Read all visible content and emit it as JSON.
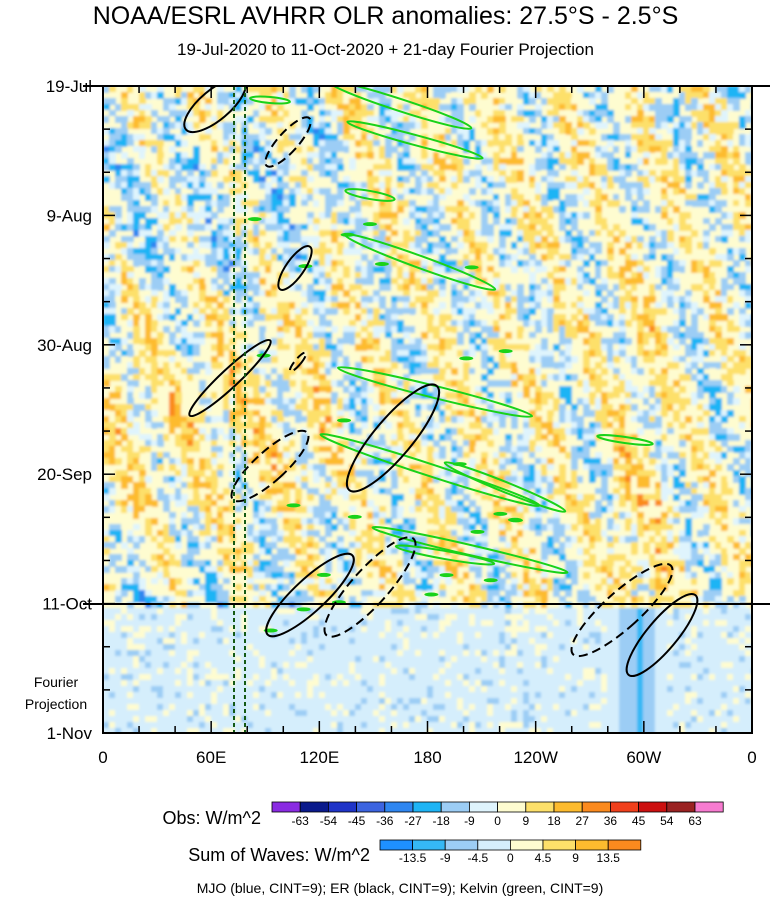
{
  "title": "NOAA/ESRL AVHRR OLR anomalies: 27.5°S - 2.5°S",
  "subtitle": "19-Jul-2020 to 11-Oct-2020 + 21-day Fourier Projection",
  "chart_data": {
    "type": "heatmap",
    "y_axis": {
      "tick_labels": [
        "19-Jul",
        "9-Aug",
        "30-Aug",
        "20-Sep",
        "11-Oct",
        "1-Nov"
      ],
      "projection_label_lines": [
        "Fourier",
        "Projection"
      ]
    },
    "x_axis": {
      "tick_labels": [
        "0",
        "60E",
        "120E",
        "180",
        "120W",
        "60W",
        "0"
      ],
      "range_degrees": [
        0,
        360
      ]
    },
    "observation_end": "11-Oct",
    "obs_colorbar": {
      "label": "Obs: W/m^2",
      "levels": [
        -63,
        -54,
        -45,
        -36,
        -27,
        -18,
        -9,
        0,
        9,
        18,
        27,
        36,
        45,
        54,
        63
      ],
      "colors": [
        "#8a2be2",
        "#0a1a8c",
        "#1f34c8",
        "#3c64e0",
        "#2f86f0",
        "#1eb4f5",
        "#9ccdf5",
        "#dff4fd",
        "#fefcd0",
        "#fde06a",
        "#fdbb2e",
        "#fb8a1e",
        "#f0401c",
        "#cc1010",
        "#9a2222",
        "#f77bd0"
      ]
    },
    "waves_colorbar": {
      "label": "Sum of Waves: W/m^2",
      "levels": [
        -13.5,
        -9,
        -4.5,
        0,
        4.5,
        9,
        13.5
      ],
      "colors": [
        "#1e90ff",
        "#35b8f5",
        "#9ccdf5",
        "#d5eefc",
        "#fefcd0",
        "#fde06a",
        "#fdbb2e",
        "#fb8a1e"
      ]
    },
    "legend_text": "MJO (blue, CINT=9); ER (black, CINT=9); Kelvin (green, CINT=9)",
    "contour_colors": {
      "mjo": "#1e3cff",
      "er": "#000000",
      "kelvin": "#19d219"
    }
  }
}
